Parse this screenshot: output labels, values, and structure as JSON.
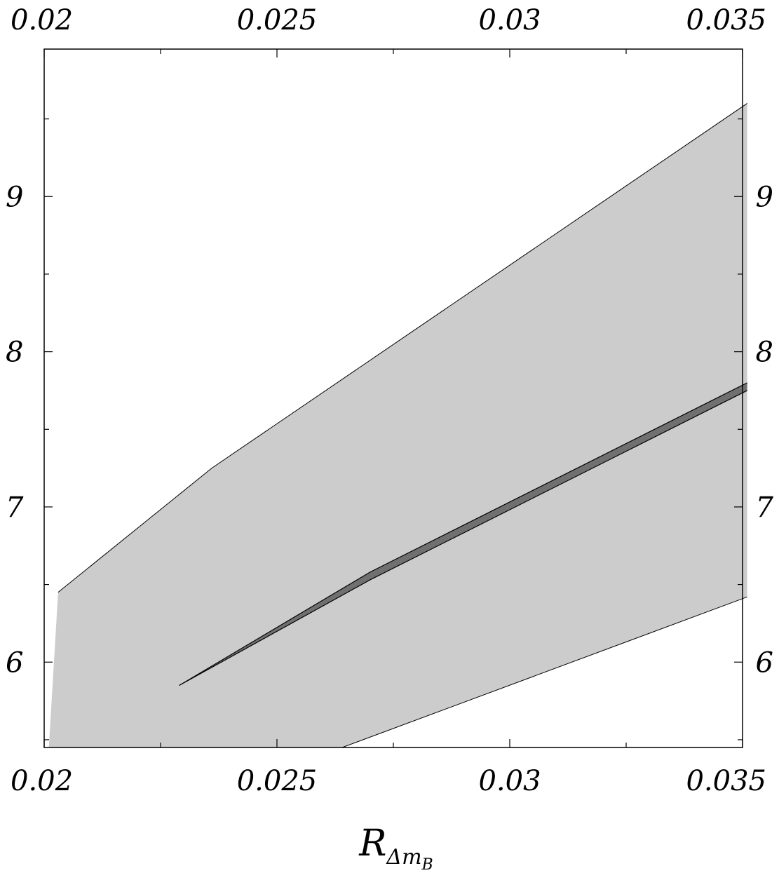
{
  "chart_data": {
    "type": "area",
    "title": "",
    "xlabel": {
      "main": "R",
      "sub": "Δm",
      "subsub": "B"
    },
    "ylabel": "",
    "xlim": [
      0.02,
      0.035
    ],
    "ylim": [
      5.45,
      9.95
    ],
    "x_ticks_major": [
      0.02,
      0.025,
      0.03,
      0.035
    ],
    "x_tick_labels": [
      "0.02",
      "0.025",
      "0.03",
      "0.035"
    ],
    "y_ticks_major": [
      6,
      7,
      8,
      9
    ],
    "y_tick_labels": [
      "6",
      "7",
      "8",
      "9"
    ],
    "x_ticks_minor": [
      0.0225,
      0.0275,
      0.0325
    ],
    "y_ticks_minor": [
      5.5,
      6.5,
      7.5,
      8.5,
      9.5
    ],
    "grid": false,
    "series": [
      {
        "role": "outer-band",
        "color": "#cccccc",
        "upper": [
          [
            0.0203,
            6.45
          ],
          [
            0.0236,
            7.25
          ],
          [
            0.0351,
            9.6
          ]
        ],
        "lower": [
          [
            0.0201,
            5.45
          ],
          [
            0.0264,
            5.45
          ],
          [
            0.0351,
            6.42
          ]
        ]
      },
      {
        "role": "inner-band",
        "color": "#707070",
        "upper": [
          [
            0.0229,
            5.85
          ],
          [
            0.027,
            6.58
          ],
          [
            0.0351,
            7.8
          ]
        ],
        "lower": [
          [
            0.0229,
            5.85
          ],
          [
            0.027,
            6.53
          ],
          [
            0.0351,
            7.75
          ]
        ]
      }
    ]
  }
}
